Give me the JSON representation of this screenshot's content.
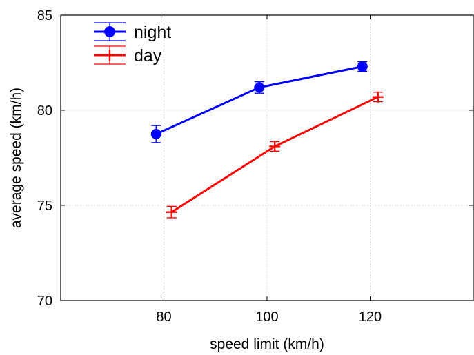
{
  "chart_data": {
    "type": "line",
    "title": "",
    "xlabel": "speed limit (km/h)",
    "ylabel": "average speed (km/h)",
    "xlim": [
      60,
      140
    ],
    "ylim": [
      70,
      85
    ],
    "x_ticks": [
      80,
      100,
      120
    ],
    "y_ticks": [
      70,
      75,
      80,
      85
    ],
    "x_tick_labels": [
      "80",
      "100",
      "120"
    ],
    "y_tick_labels": [
      "70",
      "75",
      "80",
      "85"
    ],
    "grid": true,
    "legend_position": "top-left",
    "series": [
      {
        "name": "night",
        "color": "#0000ff",
        "marker": "circle",
        "x": [
          78.5,
          98.5,
          118.5
        ],
        "y": [
          78.75,
          81.2,
          82.3
        ],
        "error": [
          0.45,
          0.3,
          0.25
        ]
      },
      {
        "name": "day",
        "color": "#ff0000",
        "marker": "plus",
        "x": [
          81.5,
          101.5,
          121.5
        ],
        "y": [
          74.65,
          78.1,
          80.7
        ],
        "error": [
          0.3,
          0.25,
          0.25
        ]
      }
    ]
  }
}
